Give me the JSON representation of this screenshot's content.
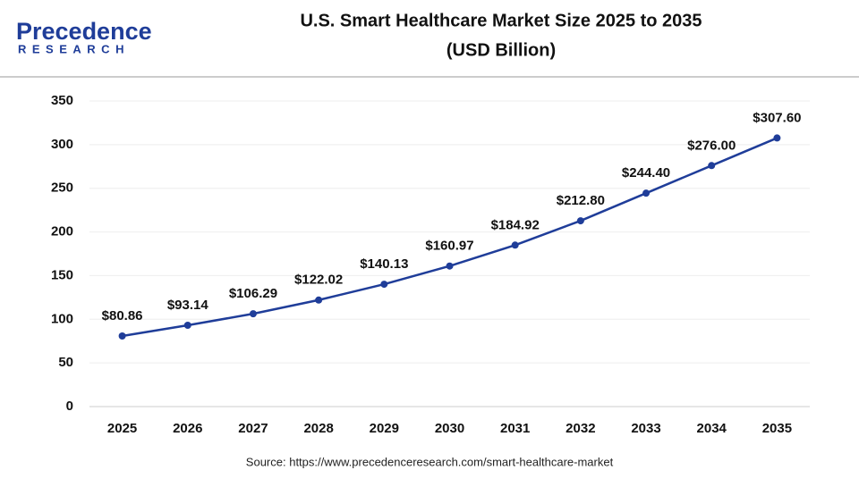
{
  "logo": {
    "name": "Precedence",
    "tagline": "RESEARCH"
  },
  "chart_data": {
    "type": "line",
    "title": "U.S. Smart Healthcare Market Size 2025 to 2035",
    "subtitle": "(USD Billion)",
    "categories": [
      "2025",
      "2026",
      "2027",
      "2028",
      "2029",
      "2030",
      "2031",
      "2032",
      "2033",
      "2034",
      "2035"
    ],
    "series": [
      {
        "name": "U.S. Smart Healthcare Market Size",
        "color": "#1f3d99",
        "values": [
          80.86,
          93.14,
          106.29,
          122.02,
          140.13,
          160.97,
          184.92,
          212.8,
          244.4,
          276.0,
          307.6
        ],
        "value_labels": [
          "$80.86",
          "$93.14",
          "$106.29",
          "$122.02",
          "$140.13",
          "$160.97",
          "$184.92",
          "$212.80",
          "$244.40",
          "$276.00",
          "$307.60"
        ]
      }
    ],
    "ylim": [
      0,
      350
    ],
    "yticks": [
      0,
      50,
      100,
      150,
      200,
      250,
      300,
      350
    ],
    "grid": true,
    "source": "Source: https://www.precedenceresearch.com/smart-healthcare-market"
  }
}
